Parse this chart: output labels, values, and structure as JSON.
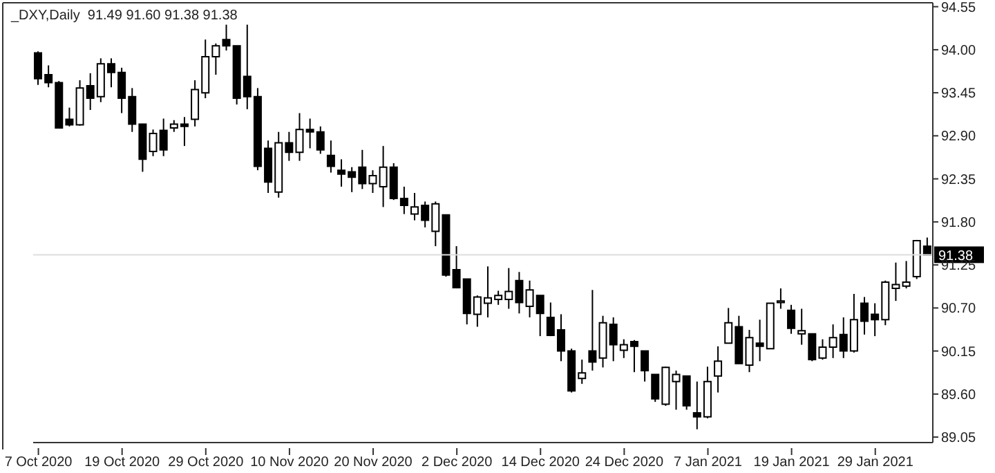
{
  "chart_data": {
    "type": "candlestick",
    "title": "_DXY,Daily  91.49 91.60 91.38 91.38",
    "color": "#000000",
    "categories": [
      "7 Oct 2020",
      null,
      null,
      null,
      null,
      null,
      null,
      null,
      "19 Oct 2020",
      null,
      null,
      null,
      null,
      null,
      null,
      null,
      "29 Oct 2020",
      null,
      null,
      null,
      null,
      null,
      null,
      null,
      "10 Nov 2020",
      null,
      null,
      null,
      null,
      null,
      null,
      null,
      "20 Nov 2020",
      null,
      null,
      null,
      null,
      null,
      null,
      null,
      "2 Dec 2020",
      null,
      null,
      null,
      null,
      null,
      null,
      null,
      "14 Dec 2020",
      null,
      null,
      null,
      null,
      null,
      null,
      null,
      "24 Dec 2020",
      null,
      null,
      null,
      null,
      null,
      null,
      null,
      "7 Jan 2021",
      null,
      null,
      null,
      null,
      null,
      null,
      null,
      "19 Jan 2021",
      null,
      null,
      null,
      null,
      null,
      null,
      null,
      "29 Jan 2021",
      null,
      null,
      null,
      null,
      null
    ],
    "ohlc": [
      [
        93.96,
        93.98,
        93.55,
        93.63
      ],
      [
        93.68,
        93.8,
        93.52,
        93.58
      ],
      [
        93.58,
        93.6,
        93.0,
        93.0
      ],
      [
        93.11,
        93.26,
        93.02,
        93.04
      ],
      [
        93.04,
        93.61,
        93.03,
        93.51
      ],
      [
        93.54,
        93.7,
        93.23,
        93.38
      ],
      [
        93.4,
        93.89,
        93.33,
        93.82
      ],
      [
        93.82,
        93.89,
        93.52,
        93.71
      ],
      [
        93.71,
        93.77,
        93.19,
        93.38
      ],
      [
        93.4,
        93.51,
        92.95,
        93.05
      ],
      [
        93.05,
        93.05,
        92.44,
        92.6
      ],
      [
        92.7,
        92.98,
        92.64,
        92.93
      ],
      [
        92.97,
        93.12,
        92.64,
        92.72
      ],
      [
        93.0,
        93.1,
        92.95,
        93.05
      ],
      [
        93.05,
        93.14,
        92.77,
        93.02
      ],
      [
        93.11,
        93.61,
        93.02,
        93.49
      ],
      [
        93.45,
        94.13,
        93.38,
        93.91
      ],
      [
        93.91,
        94.08,
        93.68,
        94.05
      ],
      [
        94.13,
        94.32,
        93.99,
        94.05
      ],
      [
        94.05,
        94.05,
        93.3,
        93.38
      ],
      [
        93.66,
        94.32,
        93.24,
        93.4
      ],
      [
        93.4,
        93.51,
        92.46,
        92.51
      ],
      [
        92.74,
        92.84,
        92.17,
        92.31
      ],
      [
        92.18,
        92.95,
        92.11,
        92.81
      ],
      [
        92.81,
        92.95,
        92.58,
        92.69
      ],
      [
        92.69,
        93.19,
        92.58,
        92.98
      ],
      [
        92.98,
        93.12,
        92.74,
        92.95
      ],
      [
        92.95,
        93.02,
        92.67,
        92.72
      ],
      [
        92.65,
        92.84,
        92.43,
        92.51
      ],
      [
        92.46,
        92.6,
        92.25,
        92.41
      ],
      [
        92.44,
        92.5,
        92.18,
        92.37
      ],
      [
        92.5,
        92.72,
        92.22,
        92.29
      ],
      [
        92.29,
        92.46,
        92.17,
        92.39
      ],
      [
        92.25,
        92.77,
        91.99,
        92.5
      ],
      [
        92.5,
        92.55,
        92.08,
        92.1
      ],
      [
        92.1,
        92.25,
        91.9,
        92.01
      ],
      [
        91.9,
        92.17,
        91.82,
        91.99
      ],
      [
        92.01,
        92.06,
        91.73,
        91.82
      ],
      [
        91.68,
        92.06,
        91.49,
        92.03
      ],
      [
        91.89,
        91.89,
        91.1,
        91.12
      ],
      [
        91.19,
        91.49,
        90.95,
        90.96
      ],
      [
        91.07,
        91.07,
        90.49,
        90.63
      ],
      [
        90.62,
        90.86,
        90.46,
        90.84
      ],
      [
        90.76,
        91.23,
        90.58,
        90.83
      ],
      [
        90.81,
        90.92,
        90.74,
        90.86
      ],
      [
        90.81,
        91.21,
        90.69,
        90.91
      ],
      [
        91.05,
        91.16,
        90.63,
        90.77
      ],
      [
        90.72,
        91.05,
        90.58,
        90.93
      ],
      [
        90.86,
        90.86,
        90.34,
        90.63
      ],
      [
        90.58,
        90.77,
        90.34,
        90.35
      ],
      [
        90.42,
        90.62,
        90.02,
        90.15
      ],
      [
        90.15,
        90.18,
        89.62,
        89.64
      ],
      [
        89.8,
        90.04,
        89.73,
        89.87
      ],
      [
        90.15,
        90.93,
        89.9,
        90.01
      ],
      [
        90.06,
        90.6,
        89.94,
        90.51
      ],
      [
        90.49,
        90.58,
        90.02,
        90.23
      ],
      [
        90.16,
        90.3,
        90.06,
        90.23
      ],
      [
        90.27,
        90.29,
        89.88,
        90.21
      ],
      [
        90.15,
        90.15,
        89.76,
        89.9
      ],
      [
        89.85,
        89.85,
        89.5,
        89.54
      ],
      [
        89.47,
        89.95,
        89.45,
        89.94
      ],
      [
        89.76,
        89.9,
        89.4,
        89.85
      ],
      [
        89.83,
        89.83,
        89.4,
        89.45
      ],
      [
        89.36,
        89.76,
        89.15,
        89.31
      ],
      [
        89.31,
        89.95,
        89.29,
        89.76
      ],
      [
        89.83,
        90.21,
        89.62,
        90.02
      ],
      [
        90.25,
        90.7,
        90.25,
        90.51
      ],
      [
        90.46,
        90.6,
        89.99,
        89.99
      ],
      [
        89.97,
        90.42,
        89.88,
        90.32
      ],
      [
        90.25,
        90.55,
        90.02,
        90.21
      ],
      [
        90.18,
        90.76,
        90.18,
        90.76
      ],
      [
        90.77,
        90.95,
        90.69,
        90.79
      ],
      [
        90.67,
        90.74,
        90.37,
        90.44
      ],
      [
        90.37,
        90.69,
        90.23,
        90.41
      ],
      [
        90.37,
        90.37,
        90.02,
        90.04
      ],
      [
        90.06,
        90.3,
        90.04,
        90.2
      ],
      [
        90.2,
        90.49,
        90.06,
        90.32
      ],
      [
        90.36,
        90.58,
        90.06,
        90.15
      ],
      [
        90.15,
        90.88,
        90.13,
        90.55
      ],
      [
        90.76,
        90.84,
        90.36,
        90.53
      ],
      [
        90.62,
        90.76,
        90.34,
        90.55
      ],
      [
        90.55,
        91.05,
        90.48,
        91.03
      ],
      [
        90.95,
        91.28,
        90.79,
        91.0
      ],
      [
        90.98,
        91.3,
        90.95,
        91.03
      ],
      [
        91.1,
        91.57,
        91.07,
        91.56
      ],
      [
        91.49,
        91.6,
        91.38,
        91.38
      ]
    ],
    "ylim": [
      88.98,
      94.6
    ],
    "yticks": [
      89.05,
      {
        "value": 89.6,
        "label": "89.60"
      },
      90.15,
      {
        "value": 90.7,
        "label": "90.70"
      },
      91.25,
      {
        "value": 91.8,
        "label": "91.80"
      },
      92.35,
      {
        "value": 92.9,
        "label": "92.90"
      },
      93.45,
      {
        "value": 94.0,
        "label": "94.00"
      },
      94.55
    ],
    "ref_lines": [
      {
        "axis": "y",
        "value": 91.38,
        "label": "91.38",
        "color": "#dddddd"
      }
    ]
  }
}
